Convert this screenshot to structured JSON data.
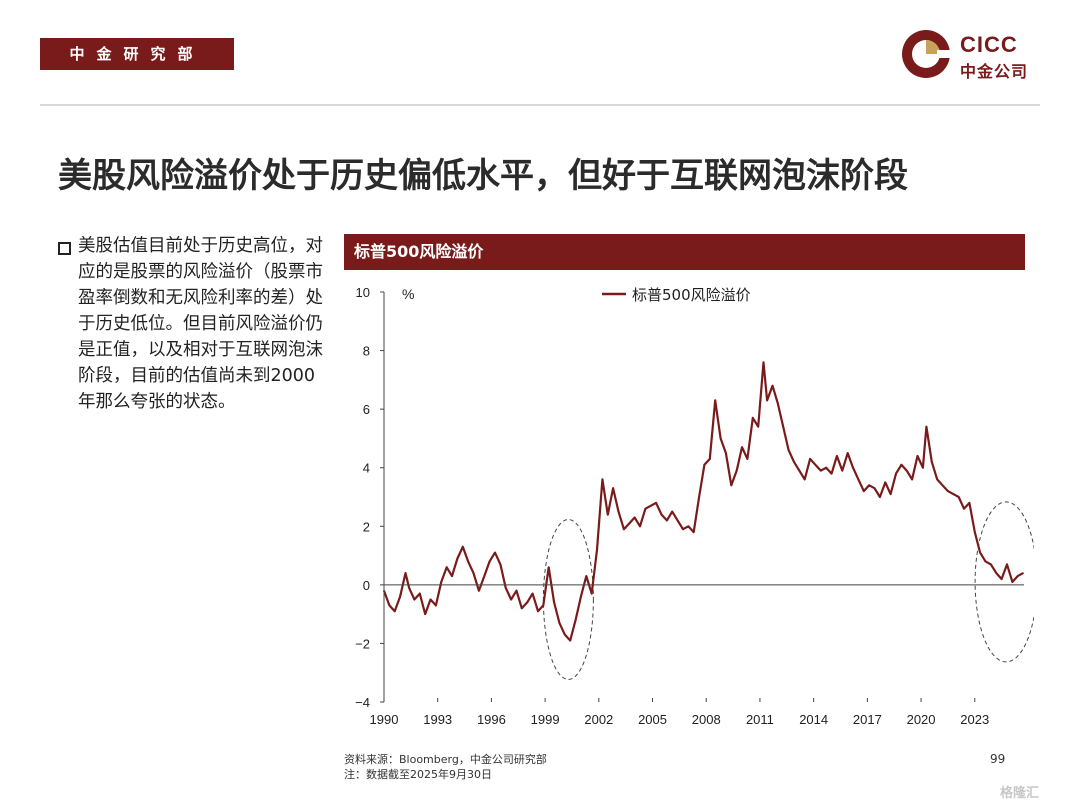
{
  "header": {
    "dept_label": "中金研究部",
    "logo_en": "CICC",
    "logo_cn": "中金公司",
    "brand_color": "#7a1b1b"
  },
  "title": "美股风险溢价处于历史偏低水平，但好于互联网泡沫阶段",
  "bullet": "美股估值目前处于历史高位，对应的是股票的风险溢价（股票市盈率倒数和无风险利率的差）处于历史低位。但目前风险溢价仍是正值，以及相对于互联网泡沫阶段，目前的估值尚未到2000年那么夸张的状态。",
  "chart_header": "标普500风险溢价",
  "chart_data": {
    "type": "line",
    "title": "标普500风险溢价",
    "ylabel": "%",
    "xlabel": "",
    "ylim": [
      -4,
      10
    ],
    "yticks": [
      -4,
      -2,
      0,
      2,
      4,
      6,
      8,
      10
    ],
    "xlim": [
      1990,
      2025.75
    ],
    "xticks": [
      "1990",
      "1993",
      "1996",
      "1999",
      "2002",
      "2005",
      "2008",
      "2011",
      "2014",
      "2017",
      "2020",
      "2023"
    ],
    "legend": "top-center",
    "annotations": [
      "dashed ellipse around 1999-2000",
      "dashed ellipse around 2023-2025"
    ],
    "series": [
      {
        "name": "标普500风险溢价",
        "color": "#7a1b1b",
        "x": [
          1990.0,
          1990.3,
          1990.6,
          1990.9,
          1991.2,
          1991.4,
          1991.7,
          1992.0,
          1992.3,
          1992.6,
          1992.9,
          1993.2,
          1993.5,
          1993.8,
          1994.1,
          1994.4,
          1994.7,
          1995.0,
          1995.3,
          1995.6,
          1995.9,
          1996.2,
          1996.5,
          1996.8,
          1997.1,
          1997.4,
          1997.7,
          1998.0,
          1998.3,
          1998.6,
          1998.9,
          1999.2,
          1999.5,
          1999.8,
          2000.1,
          2000.4,
          2000.7,
          2001.0,
          2001.3,
          2001.6,
          2001.9,
          2002.2,
          2002.5,
          2002.8,
          2003.1,
          2003.4,
          2003.7,
          2004.0,
          2004.3,
          2004.6,
          2004.9,
          2005.2,
          2005.5,
          2005.8,
          2006.1,
          2006.4,
          2006.7,
          2007.0,
          2007.3,
          2007.6,
          2007.9,
          2008.2,
          2008.5,
          2008.8,
          2009.1,
          2009.4,
          2009.7,
          2010.0,
          2010.3,
          2010.6,
          2010.9,
          2011.2,
          2011.4,
          2011.7,
          2012.0,
          2012.3,
          2012.6,
          2012.9,
          2013.2,
          2013.5,
          2013.8,
          2014.1,
          2014.4,
          2014.7,
          2015.0,
          2015.3,
          2015.6,
          2015.9,
          2016.2,
          2016.5,
          2016.8,
          2017.1,
          2017.4,
          2017.7,
          2018.0,
          2018.3,
          2018.6,
          2018.9,
          2019.2,
          2019.5,
          2019.8,
          2020.1,
          2020.3,
          2020.6,
          2020.9,
          2021.2,
          2021.5,
          2021.8,
          2022.1,
          2022.4,
          2022.7,
          2023.0,
          2023.3,
          2023.6,
          2023.9,
          2024.2,
          2024.5,
          2024.8,
          2025.1,
          2025.4,
          2025.7
        ],
        "values": [
          -0.2,
          -0.7,
          -0.9,
          -0.4,
          0.4,
          -0.1,
          -0.5,
          -0.3,
          -1.0,
          -0.5,
          -0.7,
          0.1,
          0.6,
          0.3,
          0.9,
          1.3,
          0.8,
          0.4,
          -0.2,
          0.3,
          0.8,
          1.1,
          0.7,
          -0.1,
          -0.5,
          -0.2,
          -0.8,
          -0.6,
          -0.3,
          -0.9,
          -0.7,
          0.6,
          -0.6,
          -1.3,
          -1.7,
          -1.9,
          -1.2,
          -0.4,
          0.3,
          -0.3,
          1.2,
          3.6,
          2.4,
          3.3,
          2.5,
          1.9,
          2.1,
          2.3,
          2.0,
          2.6,
          2.7,
          2.8,
          2.4,
          2.2,
          2.5,
          2.2,
          1.9,
          2.0,
          1.8,
          3.0,
          4.1,
          4.3,
          6.3,
          5.0,
          4.5,
          3.4,
          3.9,
          4.7,
          4.3,
          5.7,
          5.4,
          7.6,
          6.3,
          6.8,
          6.2,
          5.4,
          4.6,
          4.2,
          3.9,
          3.6,
          4.3,
          4.1,
          3.9,
          4.0,
          3.8,
          4.4,
          3.9,
          4.5,
          4.0,
          3.6,
          3.2,
          3.4,
          3.3,
          3.0,
          3.5,
          3.1,
          3.8,
          4.1,
          3.9,
          3.6,
          4.4,
          4.0,
          5.4,
          4.2,
          3.6,
          3.4,
          3.2,
          3.1,
          3.0,
          2.6,
          2.8,
          1.8,
          1.1,
          0.8,
          0.7,
          0.4,
          0.2,
          0.7,
          0.1,
          0.3,
          0.4
        ]
      }
    ]
  },
  "source_line1": "资料来源：Bloomberg，中金公司研究部",
  "source_line2": "注：数据截至2025年9月30日",
  "page_number": "99",
  "watermark": "格隆汇"
}
